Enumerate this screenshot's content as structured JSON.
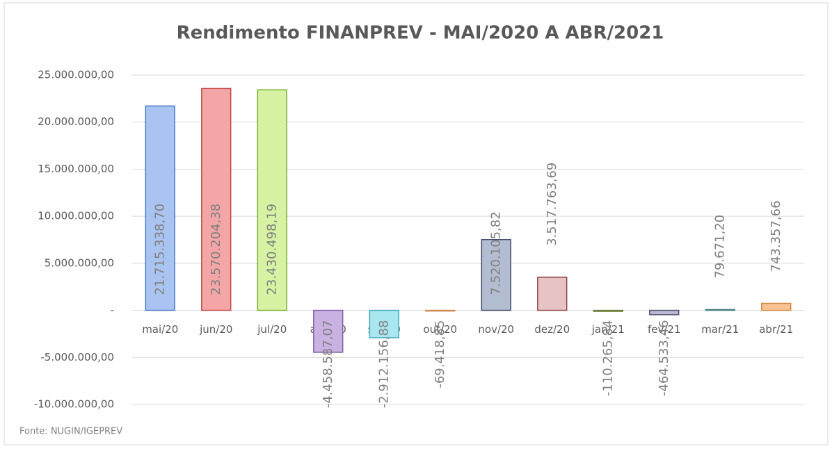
{
  "chart_data": {
    "type": "bar",
    "title": "Rendimento  FINANPREV  - MAI/2020 A ABR/2021",
    "source": "Fonte: NUGIN/IGEPREV",
    "categories": [
      "mai/20",
      "jun/20",
      "jul/20",
      "ago/20",
      "set/20",
      "out/20",
      "nov/20",
      "dez/20",
      "jan/21",
      "fev/21",
      "mar/21",
      "abr/21"
    ],
    "values": [
      21715338.7,
      23570204.38,
      23430498.19,
      -4458587.07,
      -2912156.88,
      -69418.85,
      7520105.82,
      3517763.69,
      -110265.84,
      -464533.46,
      79671.2,
      743357.66
    ],
    "value_labels": [
      "21.715.338,70",
      "23.570.204,38",
      "23.430.498,19",
      "-4.458.587,07",
      "-2.912.156,88",
      "-69.418,85",
      "7.520.105,82",
      "3.517.763,69",
      "-110.265,84",
      "-464.533,46",
      "79.671,20",
      "743.357,66"
    ],
    "colors": [
      "#a9c4f0",
      "#f4a6a6",
      "#d6f2a2",
      "#c9b2e2",
      "#a9e6f0",
      "#f7c9a2",
      "#b3bdd1",
      "#e8c3c3",
      "#c9d0a3",
      "#babad2",
      "#a3d2d2",
      "#f8c292"
    ],
    "edge_colors": [
      "#4a7ac8",
      "#c04848",
      "#7ab030",
      "#8060a8",
      "#40a8c0",
      "#d08850",
      "#404a66",
      "#904848",
      "#708040",
      "#505070",
      "#408080",
      "#d08840"
    ],
    "ylim": [
      -10000000,
      25000000
    ],
    "yticks": [
      {
        "value": -10000000,
        "label": "-10.000.000,00"
      },
      {
        "value": -5000000,
        "label": "-5.000.000,00"
      },
      {
        "value": 0,
        "label": "-"
      },
      {
        "value": 5000000,
        "label": "5.000.000,00"
      },
      {
        "value": 10000000,
        "label": "10.000.000,00"
      },
      {
        "value": 15000000,
        "label": "15.000.000,00"
      },
      {
        "value": 20000000,
        "label": "20.000.000,00"
      },
      {
        "value": 25000000,
        "label": "25.000.000,00"
      }
    ],
    "grid": true
  }
}
